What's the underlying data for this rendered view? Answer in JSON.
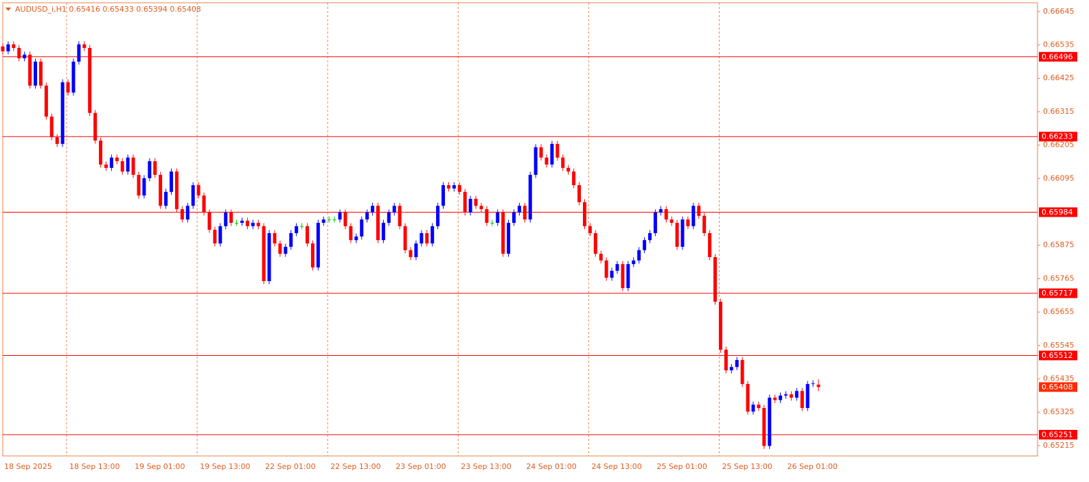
{
  "chart_data": {
    "type": "candlestick",
    "title": "AUDUSD_i,H1  0.65416 0.65433 0.65394 0.65408",
    "categories": [
      "18 Sep 2025",
      null,
      null,
      null,
      null,
      null,
      null,
      null,
      null,
      null,
      null,
      null,
      "18 Sep 13:00",
      null,
      null,
      null,
      null,
      null,
      null,
      null,
      null,
      null,
      null,
      null,
      "19 Sep 01:00",
      null,
      null,
      null,
      null,
      null,
      null,
      null,
      null,
      null,
      null,
      null,
      "19 Sep 13:00",
      null,
      null,
      null,
      null,
      null,
      null,
      null,
      null,
      null,
      null,
      null,
      "22 Sep 01:00",
      null,
      null,
      null,
      null,
      null,
      null,
      null,
      null,
      null,
      null,
      null,
      "22 Sep 13:00",
      null,
      null,
      null,
      null,
      null,
      null,
      null,
      null,
      null,
      null,
      null,
      "23 Sep 01:00",
      null,
      null,
      null,
      null,
      null,
      null,
      null,
      null,
      null,
      null,
      null,
      "23 Sep 13:00",
      null,
      null,
      null,
      null,
      null,
      null,
      null,
      null,
      null,
      null,
      null,
      "24 Sep 01:00",
      null,
      null,
      null,
      null,
      null,
      null,
      null,
      null,
      null,
      null,
      null,
      "24 Sep 13:00",
      null,
      null,
      null,
      null,
      null,
      null,
      null,
      null,
      null,
      null,
      null,
      "25 Sep 01:00",
      null,
      null,
      null,
      null,
      null,
      null,
      null,
      null,
      null,
      null,
      null,
      "25 Sep 13:00",
      null,
      null,
      null,
      null,
      null,
      null,
      null,
      null,
      null,
      null,
      null,
      "26 Sep 01:00",
      null,
      null,
      null,
      null,
      null,
      null
    ],
    "open": [
      0.6653,
      0.66514,
      0.66537,
      0.66525,
      0.66491,
      0.66503,
      0.66401,
      0.6648,
      0.66401,
      0.66299,
      0.66231,
      0.66209,
      0.66412,
      0.66378,
      0.6648,
      0.66537,
      0.66525,
      0.66311,
      0.6622,
      0.66141,
      0.6613,
      0.66164,
      0.66152,
      0.66118,
      0.66164,
      0.66107,
      0.66039,
      0.66096,
      0.66152,
      0.66107,
      0.66005,
      0.66051,
      0.66118,
      0.65994,
      0.6596,
      0.66005,
      0.66073,
      0.66039,
      0.65983,
      0.65926,
      0.65881,
      0.65938,
      0.65983,
      0.65949,
      0.65949,
      0.65956,
      0.65938,
      0.65949,
      0.65938,
      0.65757,
      0.65915,
      0.65881,
      0.65847,
      0.6587,
      0.65915,
      0.65938,
      0.65938,
      0.65881,
      0.65802,
      0.65949,
      0.6596,
      0.6596,
      0.6596,
      0.65983,
      0.65938,
      0.65892,
      0.65904,
      0.6596,
      0.65983,
      0.66005,
      0.65892,
      0.65949,
      0.65983,
      0.66005,
      0.65938,
      0.65859,
      0.65836,
      0.65881,
      0.65915,
      0.65881,
      0.65938,
      0.66005,
      0.66073,
      0.66062,
      0.66073,
      0.66051,
      0.65983,
      0.66028,
      0.66005,
      0.65994,
      0.65949,
      0.65949,
      0.65983,
      0.65847,
      0.65949,
      0.65983,
      0.66005,
      0.6596,
      0.66107,
      0.66198,
      0.66164,
      0.66141,
      0.66209,
      0.66164,
      0.6613,
      0.66118,
      0.66073,
      0.66017,
      0.65938,
      0.65915,
      0.65847,
      0.65825,
      0.65768,
      0.65791,
      0.65813,
      0.65734,
      0.65813,
      0.65825,
      0.65859,
      0.65892,
      0.65915,
      0.65983,
      0.65994,
      0.6596,
      0.65949,
      0.6587,
      0.6596,
      0.65938,
      0.66005,
      0.65972,
      0.65915,
      0.65836,
      0.65689,
      0.65531,
      0.65463,
      0.65474,
      0.65497,
      0.65418,
      0.65327,
      0.6535,
      0.65339,
      0.65214,
      0.65373,
      0.65365,
      0.6538,
      0.65384,
      0.65373,
      0.65395,
      0.65339,
      0.65418,
      0.65416
    ],
    "high": [
      0.6654,
      0.66547,
      0.66547,
      0.66535,
      0.66513,
      0.66513,
      0.6649,
      0.6649,
      0.66411,
      0.66309,
      0.66241,
      0.66422,
      0.66422,
      0.6649,
      0.66547,
      0.66547,
      0.66535,
      0.66321,
      0.6623,
      0.66151,
      0.66174,
      0.66174,
      0.66162,
      0.66174,
      0.66174,
      0.66117,
      0.66106,
      0.66162,
      0.66162,
      0.66117,
      0.66061,
      0.66128,
      0.66128,
      0.66004,
      0.66015,
      0.66083,
      0.66083,
      0.66049,
      0.65993,
      0.65936,
      0.65948,
      0.65993,
      0.65993,
      0.65959,
      0.65966,
      0.65966,
      0.65959,
      0.65959,
      0.65948,
      0.65925,
      0.65925,
      0.65891,
      0.6588,
      0.65925,
      0.65948,
      0.65948,
      0.65948,
      0.65891,
      0.65959,
      0.6597,
      0.6597,
      0.6597,
      0.65993,
      0.65993,
      0.65948,
      0.65914,
      0.6597,
      0.65993,
      0.66015,
      0.66015,
      0.65959,
      0.65993,
      0.66015,
      0.66015,
      0.65948,
      0.65869,
      0.65891,
      0.65925,
      0.65925,
      0.65948,
      0.66015,
      0.66083,
      0.66083,
      0.66083,
      0.66083,
      0.66061,
      0.66038,
      0.66038,
      0.66015,
      0.66004,
      0.65959,
      0.65993,
      0.65993,
      0.65959,
      0.65993,
      0.66015,
      0.66015,
      0.66117,
      0.66208,
      0.66208,
      0.66174,
      0.66219,
      0.66219,
      0.66174,
      0.6614,
      0.66128,
      0.66083,
      0.66027,
      0.65948,
      0.65925,
      0.65857,
      0.65835,
      0.65801,
      0.65823,
      0.65823,
      0.65823,
      0.65835,
      0.65869,
      0.65902,
      0.65925,
      0.65993,
      0.66004,
      0.66004,
      0.6597,
      0.65959,
      0.6597,
      0.6597,
      0.66015,
      0.66015,
      0.65982,
      0.65925,
      0.65846,
      0.65699,
      0.65541,
      0.65484,
      0.65507,
      0.65507,
      0.65428,
      0.6536,
      0.6536,
      0.65349,
      0.65383,
      0.65383,
      0.6539,
      0.65394,
      0.65394,
      0.65405,
      0.65405,
      0.65428,
      0.6543,
      0.65433
    ],
    "low": [
      0.66504,
      0.66504,
      0.66515,
      0.66481,
      0.66481,
      0.66391,
      0.66391,
      0.66391,
      0.66289,
      0.66221,
      0.66199,
      0.66199,
      0.66368,
      0.66368,
      0.6647,
      0.66515,
      0.66301,
      0.6621,
      0.66131,
      0.6612,
      0.6612,
      0.66142,
      0.66108,
      0.66108,
      0.66097,
      0.66029,
      0.66029,
      0.66086,
      0.66097,
      0.65995,
      0.65995,
      0.66041,
      0.65984,
      0.6595,
      0.6595,
      0.65995,
      0.66029,
      0.65973,
      0.65916,
      0.65871,
      0.65871,
      0.65928,
      0.65939,
      0.65939,
      0.65939,
      0.65928,
      0.65928,
      0.65928,
      0.65747,
      0.65747,
      0.65871,
      0.65837,
      0.65837,
      0.6586,
      0.65905,
      0.65928,
      0.65871,
      0.65792,
      0.65792,
      0.65939,
      0.6595,
      0.6595,
      0.6595,
      0.65928,
      0.65882,
      0.65882,
      0.65894,
      0.6595,
      0.65973,
      0.65882,
      0.65882,
      0.65939,
      0.65973,
      0.65928,
      0.65849,
      0.65826,
      0.65826,
      0.65871,
      0.65871,
      0.65871,
      0.65928,
      0.65995,
      0.66052,
      0.66052,
      0.66041,
      0.65973,
      0.65973,
      0.65995,
      0.65984,
      0.65939,
      0.65939,
      0.65939,
      0.65837,
      0.65837,
      0.65939,
      0.65973,
      0.6595,
      0.6595,
      0.66097,
      0.66154,
      0.66131,
      0.66131,
      0.66154,
      0.6612,
      0.66108,
      0.66063,
      0.66007,
      0.65928,
      0.65905,
      0.65837,
      0.65815,
      0.65758,
      0.65758,
      0.65781,
      0.65724,
      0.65724,
      0.65803,
      0.65815,
      0.65849,
      0.65882,
      0.65905,
      0.65973,
      0.6595,
      0.65939,
      0.6586,
      0.6586,
      0.65928,
      0.65928,
      0.65962,
      0.65905,
      0.65826,
      0.65679,
      0.65521,
      0.65453,
      0.65453,
      0.65464,
      0.65408,
      0.65317,
      0.65317,
      0.65329,
      0.65204,
      0.65204,
      0.65355,
      0.65355,
      0.6537,
      0.65363,
      0.65363,
      0.65329,
      0.65329,
      0.65408,
      0.65394
    ],
    "close": [
      0.66514,
      0.66537,
      0.66525,
      0.66491,
      0.66503,
      0.66401,
      0.6648,
      0.66401,
      0.66299,
      0.66231,
      0.66209,
      0.66412,
      0.66378,
      0.6648,
      0.66537,
      0.66525,
      0.66311,
      0.6622,
      0.66141,
      0.6613,
      0.66164,
      0.66152,
      0.66118,
      0.66164,
      0.66107,
      0.66039,
      0.66096,
      0.66152,
      0.66107,
      0.66005,
      0.66051,
      0.66118,
      0.65994,
      0.6596,
      0.66005,
      0.66073,
      0.66039,
      0.65983,
      0.65926,
      0.65881,
      0.65938,
      0.65983,
      0.65949,
      0.65949,
      0.65956,
      0.65938,
      0.65949,
      0.65938,
      0.65757,
      0.65915,
      0.65881,
      0.65847,
      0.6587,
      0.65915,
      0.65938,
      0.65938,
      0.65881,
      0.65802,
      0.65949,
      0.6596,
      0.6596,
      0.6596,
      0.65983,
      0.65938,
      0.65892,
      0.65904,
      0.6596,
      0.65983,
      0.66005,
      0.65892,
      0.65949,
      0.65983,
      0.66005,
      0.65938,
      0.65859,
      0.65836,
      0.65881,
      0.65915,
      0.65881,
      0.65938,
      0.66005,
      0.66073,
      0.66062,
      0.66073,
      0.66051,
      0.65983,
      0.66028,
      0.66005,
      0.65994,
      0.65949,
      0.65949,
      0.65983,
      0.65847,
      0.65949,
      0.65983,
      0.66005,
      0.6596,
      0.66107,
      0.66198,
      0.66164,
      0.66141,
      0.66209,
      0.66164,
      0.6613,
      0.66118,
      0.66073,
      0.66017,
      0.65938,
      0.65915,
      0.65847,
      0.65825,
      0.65768,
      0.65791,
      0.65813,
      0.65734,
      0.65813,
      0.65825,
      0.65859,
      0.65892,
      0.65915,
      0.65983,
      0.65994,
      0.6596,
      0.65949,
      0.6587,
      0.6596,
      0.65938,
      0.66005,
      0.65972,
      0.65915,
      0.65836,
      0.65689,
      0.65531,
      0.65463,
      0.65474,
      0.65497,
      0.65418,
      0.65327,
      0.6535,
      0.65339,
      0.65214,
      0.65373,
      0.65365,
      0.6538,
      0.65384,
      0.65373,
      0.65395,
      0.65339,
      0.65418,
      0.6542,
      0.65408
    ],
    "up_color": "#0000ff",
    "down_color": "#ff0000",
    "doji_color": "#00c800",
    "ylim": [
      0.65181,
      0.66674
    ],
    "yticks": [
      0.66645,
      0.66535,
      0.66425,
      0.66315,
      0.66205,
      0.66095,
      0.65875,
      0.65765,
      0.65655,
      0.65545,
      0.65435,
      0.65325,
      0.65215
    ],
    "levels": [
      0.66496,
      0.66233,
      0.65984,
      0.65717,
      0.65512,
      0.65251
    ],
    "level_color": "#ff0000",
    "current_price": 0.65408,
    "grid": true
  }
}
